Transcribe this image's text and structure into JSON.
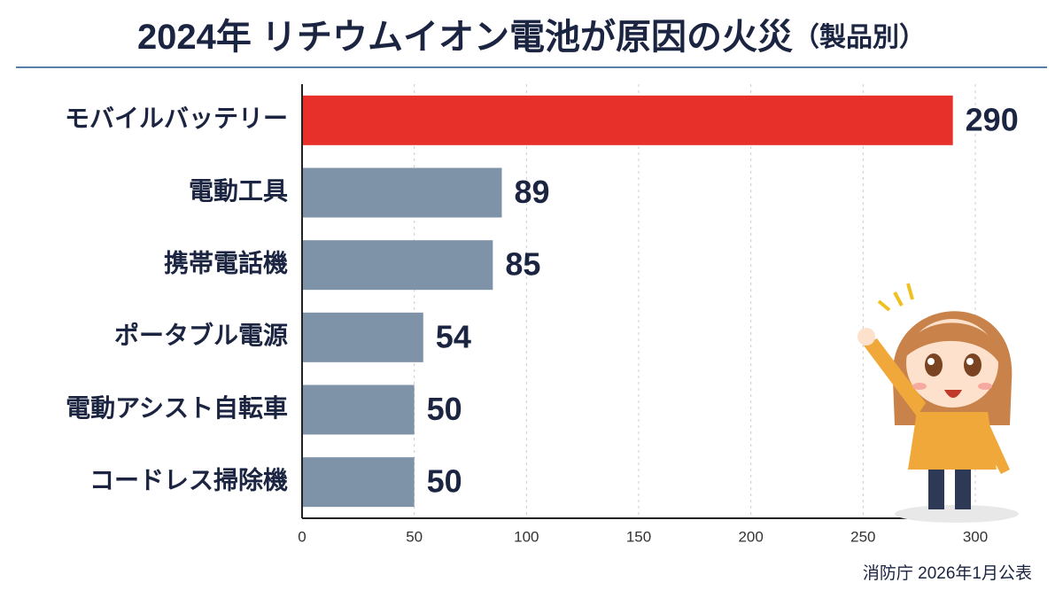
{
  "chart_data": {
    "type": "bar",
    "orientation": "horizontal",
    "title": "2024年 リチウムイオン電池が原因の火災",
    "title_note": "（製品別）",
    "categories": [
      "モバイルバッテリー",
      "電動工具",
      "携帯電話機",
      "ポータブル電源",
      "電動アシスト自転車",
      "コードレス掃除機"
    ],
    "values": [
      290,
      89,
      85,
      54,
      50,
      50
    ],
    "colors": [
      "#e8302a",
      "#7f93a8",
      "#7f93a8",
      "#7f93a8",
      "#7f93a8",
      "#7f93a8"
    ],
    "xlim": [
      0,
      300
    ],
    "xticks": [
      0,
      50,
      100,
      150,
      200,
      250,
      300
    ],
    "grid": true,
    "source": "消防庁  2026年1月公表"
  }
}
